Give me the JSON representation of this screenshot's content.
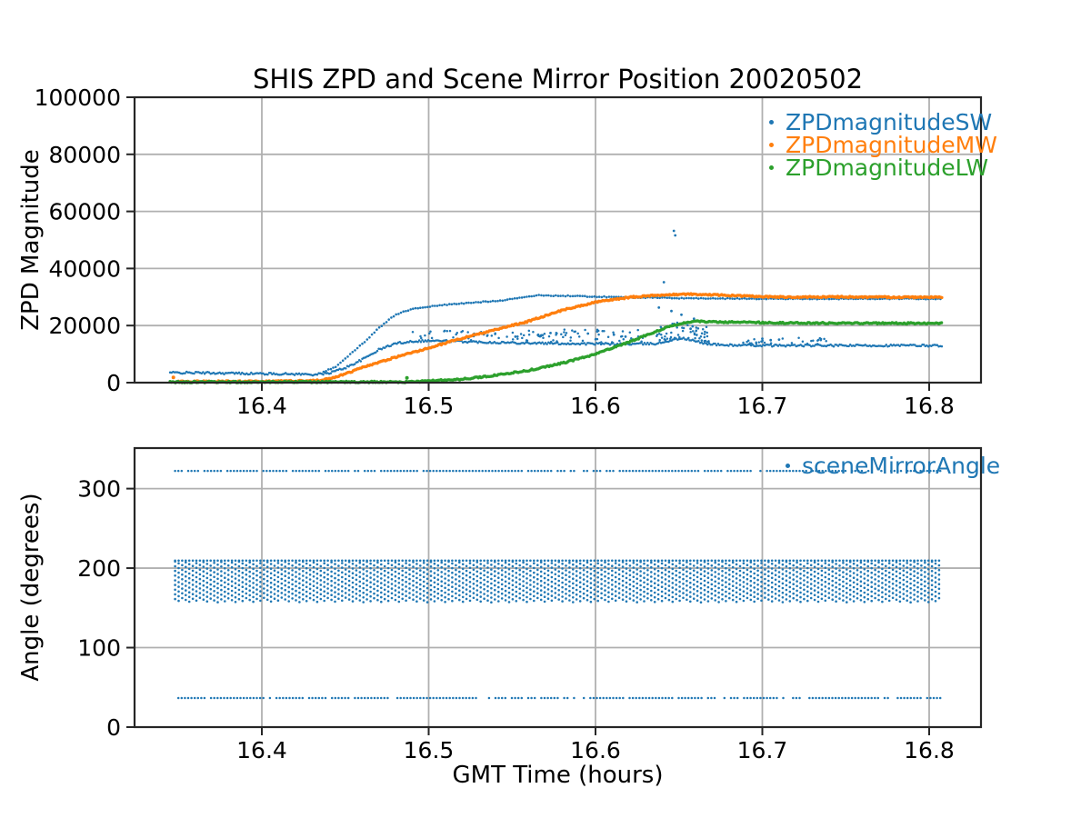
{
  "figure_title": "SHIS ZPD and Scene Mirror Position 20020502",
  "colors": {
    "blue": "#1f77b4",
    "orange": "#ff7f0e",
    "green": "#2ca02c",
    "grid": "#b0b0b0",
    "axis": "#262626",
    "text": "#000000",
    "background": "#ffffff"
  },
  "chart_data": [
    {
      "type": "scatter",
      "title": "SHIS ZPD and Scene Mirror Position 20020502",
      "xlabel": "",
      "ylabel": "ZPD Magnitude",
      "xlim": [
        16.3237,
        16.8311
      ],
      "ylim": [
        0,
        100000
      ],
      "xticks": [
        16.4,
        16.5,
        16.6,
        16.7,
        16.8
      ],
      "yticks": [
        0,
        20000,
        40000,
        60000,
        80000,
        100000
      ],
      "grid": true,
      "legend": {
        "position": "upper right",
        "entries": [
          {
            "label": "ZPDmagnitudeSW",
            "color": "#1f77b4"
          },
          {
            "label": "ZPDmagnitudeMW",
            "color": "#ff7f0e"
          },
          {
            "label": "ZPDmagnitudeLW",
            "color": "#2ca02c"
          }
        ]
      },
      "series": [
        {
          "name": "ZPDmagnitudeSW",
          "color": "#1f77b4",
          "style": "dots-noisy",
          "trange": [
            16.345,
            16.808
          ],
          "anchors": [
            [
              16.345,
              3500
            ],
            [
              16.36,
              3450
            ],
            [
              16.38,
              3300
            ],
            [
              16.4,
              3150
            ],
            [
              16.42,
              3000
            ],
            [
              16.432,
              2850
            ],
            [
              16.44,
              3300
            ],
            [
              16.45,
              5200
            ],
            [
              16.46,
              8000
            ],
            [
              16.47,
              11500
            ],
            [
              16.48,
              13700
            ],
            [
              16.49,
              14500
            ],
            [
              16.5,
              14700
            ],
            [
              16.51,
              14600
            ],
            [
              16.52,
              14400
            ],
            [
              16.54,
              14100
            ],
            [
              16.56,
              13900
            ],
            [
              16.58,
              13700
            ],
            [
              16.6,
              13600
            ],
            [
              16.62,
              13500
            ],
            [
              16.637,
              13700
            ],
            [
              16.645,
              14800
            ],
            [
              16.652,
              15600
            ],
            [
              16.658,
              14800
            ],
            [
              16.665,
              13800
            ],
            [
              16.675,
              13200
            ],
            [
              16.69,
              13050
            ],
            [
              16.72,
              13000
            ],
            [
              16.81,
              13000
            ]
          ],
          "noise": 350,
          "noise_clusters": [
            {
              "t0": 16.49,
              "t1": 16.545,
              "count": 30,
              "max": 3200
            },
            {
              "t0": 16.545,
              "t1": 16.575,
              "count": 25,
              "max": 4200
            },
            {
              "t0": 16.575,
              "t1": 16.63,
              "count": 45,
              "max": 4500
            },
            {
              "t0": 16.636,
              "t1": 16.668,
              "count": 60,
              "max": 5500
            },
            {
              "t0": 16.685,
              "t1": 16.74,
              "count": 30,
              "max": 2200
            }
          ],
          "outliers": [
            [
              16.647,
              53200
            ],
            [
              16.6478,
              51600
            ],
            [
              16.641,
              35200
            ],
            [
              16.638,
              26300
            ],
            [
              16.6455,
              25100
            ],
            [
              16.6515,
              23800
            ],
            [
              16.659,
              22400
            ],
            [
              16.6525,
              20700
            ],
            [
              16.644,
              19600
            ],
            [
              16.657,
              18900
            ],
            [
              16.601,
              17900
            ],
            [
              16.5955,
              17200
            ],
            [
              16.573,
              17400
            ],
            [
              16.5655,
              16700
            ],
            [
              16.552,
              16100
            ],
            [
              16.533,
              16900
            ],
            [
              16.527,
              16300
            ],
            [
              16.611,
              16800
            ],
            [
              16.618,
              16100
            ],
            [
              16.7,
              15400
            ],
            [
              16.705,
              14900
            ],
            [
              16.71,
              15100
            ]
          ]
        },
        {
          "name": "ZPDmagnitudeSW-upper-branch",
          "color": "#1f77b4",
          "style": "dots-sparse",
          "trange": [
            16.437,
            16.808
          ],
          "anchors": [
            [
              16.437,
              3800
            ],
            [
              16.444,
              5500
            ],
            [
              16.45,
              8500
            ],
            [
              16.456,
              11500
            ],
            [
              16.462,
              14500
            ],
            [
              16.468,
              18000
            ],
            [
              16.474,
              21000
            ],
            [
              16.48,
              23800
            ],
            [
              16.487,
              25300
            ],
            [
              16.495,
              26300
            ],
            [
              16.505,
              27000
            ],
            [
              16.515,
              27500
            ],
            [
              16.53,
              28200
            ],
            [
              16.545,
              28900
            ],
            [
              16.555,
              29800
            ],
            [
              16.565,
              30600
            ],
            [
              16.575,
              30500
            ],
            [
              16.59,
              30300
            ],
            [
              16.61,
              30000
            ],
            [
              16.63,
              29800
            ],
            [
              16.65,
              29600
            ],
            [
              16.67,
              29500
            ],
            [
              16.7,
              29400
            ],
            [
              16.81,
              29400
            ]
          ],
          "noise": 160
        },
        {
          "name": "ZPDmagnitudeMW",
          "color": "#ff7f0e",
          "style": "dots-thick",
          "trange": [
            16.35,
            16.808
          ],
          "anchors": [
            [
              16.35,
              400
            ],
            [
              16.4,
              420
            ],
            [
              16.43,
              600
            ],
            [
              16.44,
              1300
            ],
            [
              16.45,
              3000
            ],
            [
              16.46,
              5300
            ],
            [
              16.47,
              7000
            ],
            [
              16.48,
              8900
            ],
            [
              16.49,
              10500
            ],
            [
              16.5,
              12200
            ],
            [
              16.52,
              15500
            ],
            [
              16.54,
              18600
            ],
            [
              16.56,
              21500
            ],
            [
              16.58,
              25400
            ],
            [
              16.6,
              28200
            ],
            [
              16.62,
              29900
            ],
            [
              16.64,
              30700
            ],
            [
              16.655,
              31000
            ],
            [
              16.67,
              30800
            ],
            [
              16.69,
              30300
            ],
            [
              16.71,
              30000
            ],
            [
              16.75,
              30000
            ],
            [
              16.81,
              29900
            ]
          ],
          "isolated_points": [
            [
              16.347,
              1800
            ]
          ]
        },
        {
          "name": "ZPDmagnitudeLW",
          "color": "#2ca02c",
          "style": "dots-thick",
          "trange": [
            16.345,
            16.808
          ],
          "anchors": [
            [
              16.345,
              200
            ],
            [
              16.49,
              250
            ],
            [
              16.5,
              600
            ],
            [
              16.52,
              1200
            ],
            [
              16.54,
              2600
            ],
            [
              16.56,
              4300
            ],
            [
              16.58,
              6800
            ],
            [
              16.6,
              10000
            ],
            [
              16.62,
              14200
            ],
            [
              16.64,
              18800
            ],
            [
              16.65,
              20600
            ],
            [
              16.658,
              21500
            ],
            [
              16.67,
              21300
            ],
            [
              16.69,
              21100
            ],
            [
              16.72,
              20900
            ],
            [
              16.76,
              20800
            ],
            [
              16.81,
              20800
            ]
          ],
          "isolated_points": [
            [
              16.487,
              1700
            ]
          ]
        }
      ]
    },
    {
      "type": "scatter",
      "title": "",
      "xlabel": "GMT Time (hours)",
      "ylabel": "Angle (degrees)",
      "xlim": [
        16.3237,
        16.8311
      ],
      "ylim": [
        0,
        351
      ],
      "xticks": [
        16.4,
        16.5,
        16.6,
        16.7,
        16.8
      ],
      "yticks": [
        0,
        100,
        200,
        300
      ],
      "grid": true,
      "legend": {
        "position": "upper right",
        "entries": [
          {
            "label": "sceneMirrorAngle",
            "color": "#1f77b4"
          }
        ]
      },
      "series": [
        {
          "name": "sceneMirrorAngle",
          "color": "#1f77b4",
          "trange": [
            16.348,
            16.808
          ],
          "components": [
            {
              "type": "hline",
              "angle": 322.3,
              "dot_step_h": 0.00196
            },
            {
              "type": "hline",
              "angle": 36.6,
              "dot_step_h": 0.00196
            },
            {
              "type": "sweep-band",
              "min": 157,
              "max": 209.5,
              "col_step_h": 0.00213,
              "row_step_deg": 5.9,
              "phase_step_deg": 2.3
            }
          ]
        }
      ]
    }
  ]
}
